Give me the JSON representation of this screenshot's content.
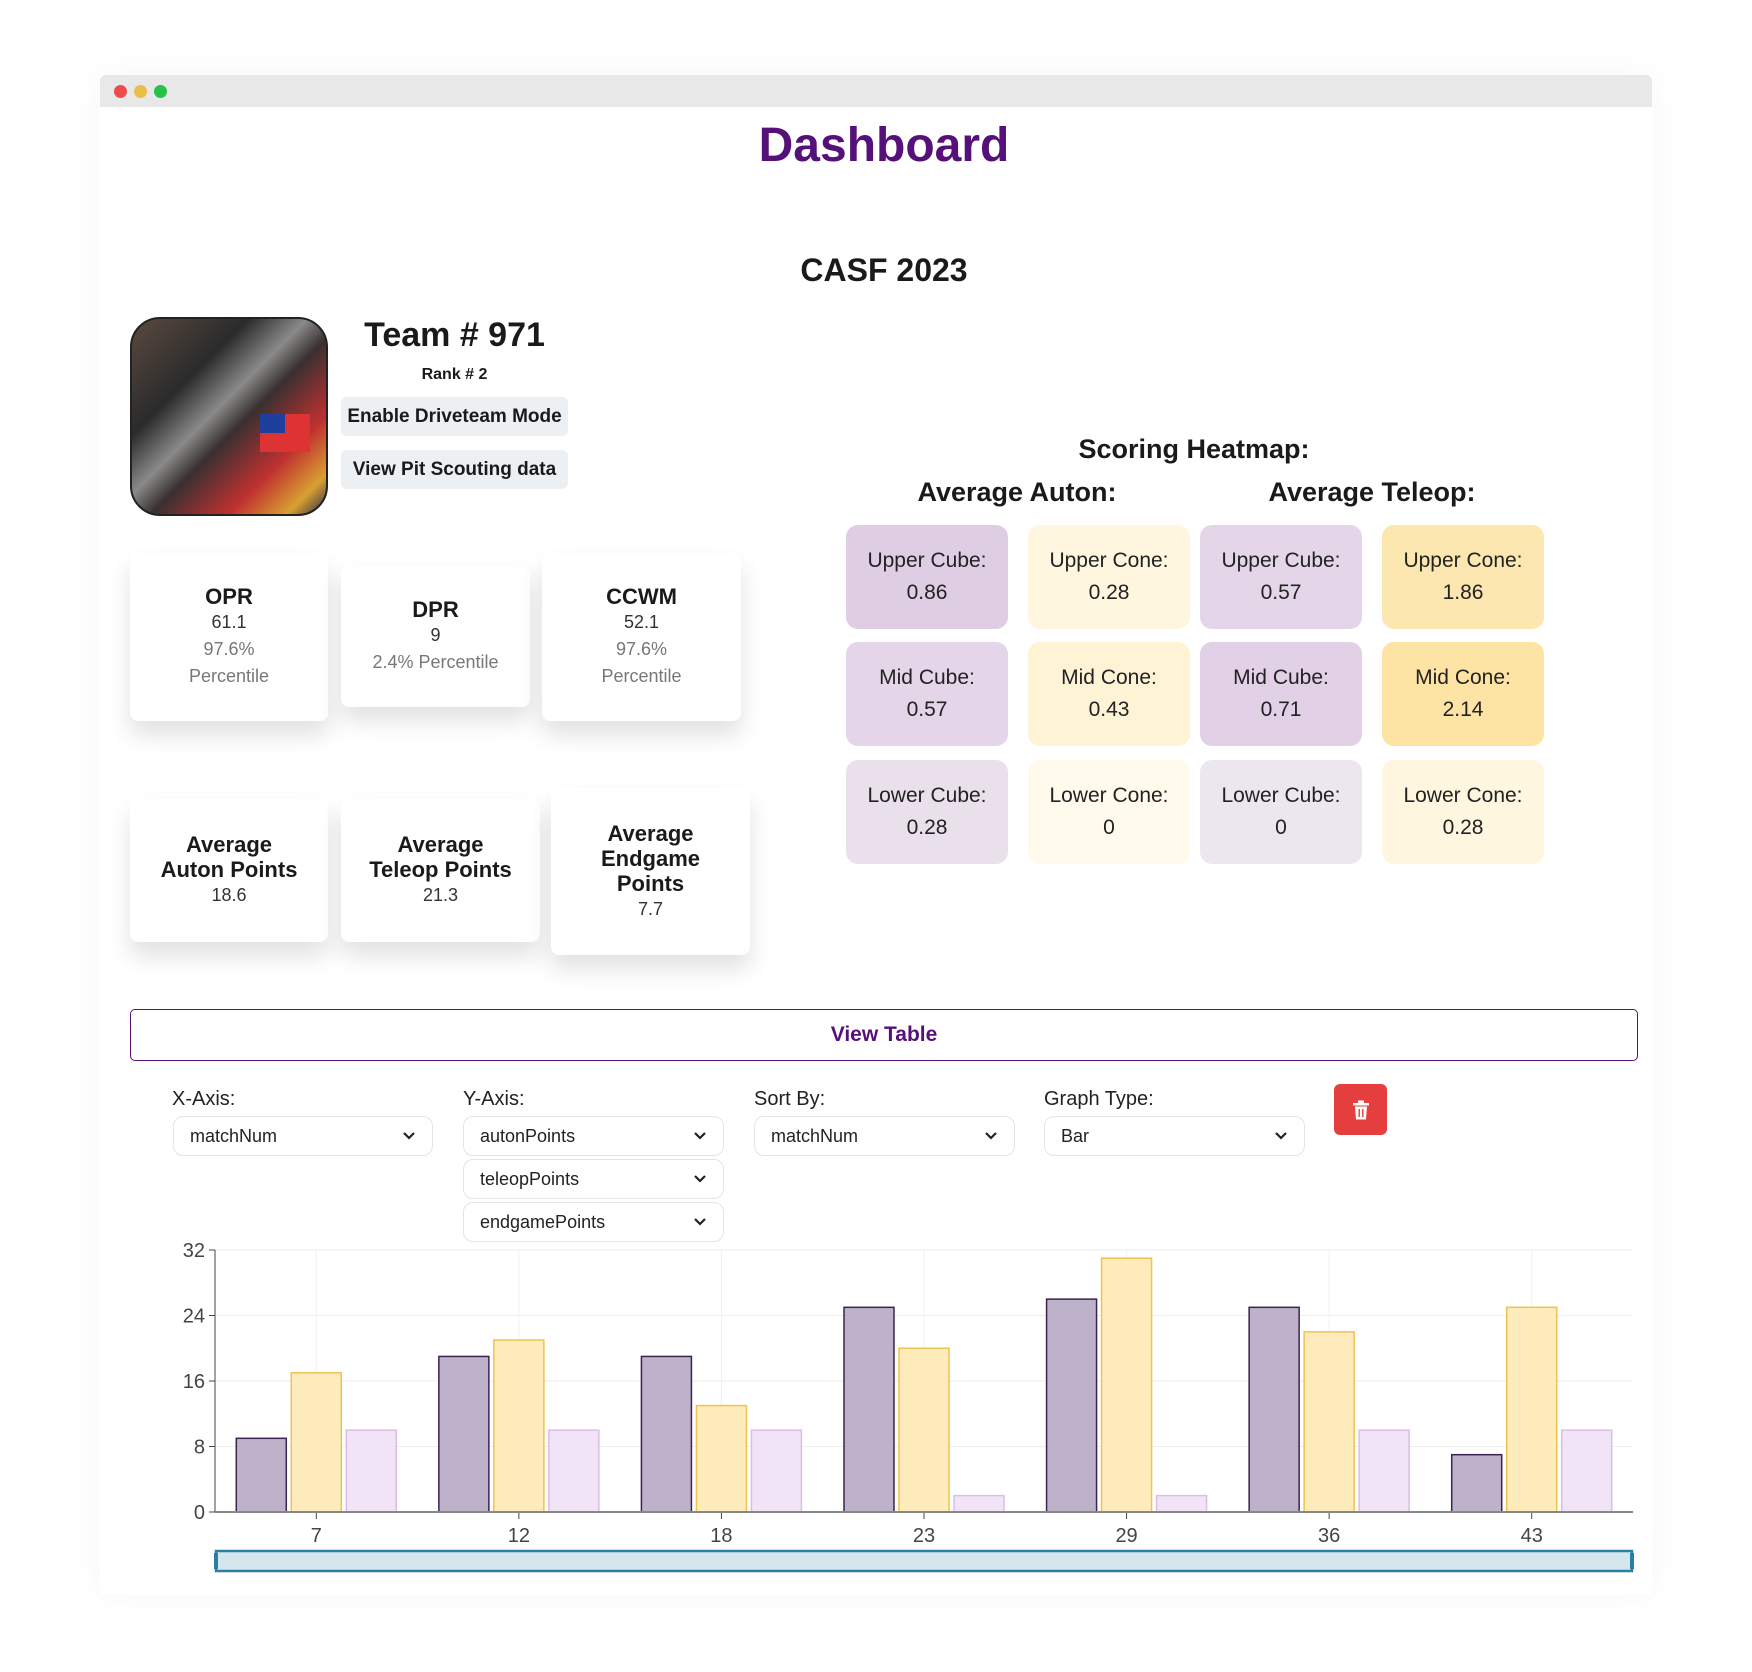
{
  "header": {
    "title": "Dashboard",
    "event": "CASF 2023"
  },
  "team": {
    "number_label": "Team # 971",
    "rank_label": "Rank # 2",
    "driveteam_button": "Enable Driveteam Mode",
    "pit_button": "View Pit Scouting data"
  },
  "stats": [
    {
      "title": "OPR",
      "value": "61.1",
      "percent": "97.6%",
      "percent_label": "Percentile"
    },
    {
      "title": "DPR",
      "value": "9",
      "percent_text": "2.4% Percentile"
    },
    {
      "title": "CCWM",
      "value": "52.1",
      "percent": "97.6%",
      "percent_label": "Percentile"
    },
    {
      "title_1": "Average",
      "title_2": "Auton Points",
      "value": "18.6"
    },
    {
      "title_1": "Average",
      "title_2": "Teleop Points",
      "value": "21.3"
    },
    {
      "title_1": "Average",
      "title_2": "Endgame",
      "title_3": "Points",
      "value": "7.7"
    }
  ],
  "heatmap": {
    "title": "Scoring Heatmap:",
    "auton_title": "Average Auton:",
    "teleop_title": "Average Teleop:",
    "cells": [
      {
        "label": "Upper Cube:",
        "value": "0.86",
        "color": "#dfcde4"
      },
      {
        "label": "Upper Cone:",
        "value": "0.28",
        "color": "#fff6df"
      },
      {
        "label": "Upper Cube:",
        "value": "0.57",
        "color": "#e4d6e8"
      },
      {
        "label": "Upper Cone:",
        "value": "1.86",
        "color": "#fde7b0"
      },
      {
        "label": "Mid Cube:",
        "value": "0.57",
        "color": "#e4d6e8"
      },
      {
        "label": "Mid Cone:",
        "value": "0.43",
        "color": "#fff3d6"
      },
      {
        "label": "Mid Cube:",
        "value": "0.71",
        "color": "#e1d0e6"
      },
      {
        "label": "Mid Cone:",
        "value": "2.14",
        "color": "#fde3a4"
      },
      {
        "label": "Lower Cube:",
        "value": "0.28",
        "color": "#e9e0ec"
      },
      {
        "label": "Lower Cone:",
        "value": "0",
        "color": "#fffaeb"
      },
      {
        "label": "Lower Cube:",
        "value": "0",
        "color": "#ece6ef"
      },
      {
        "label": "Lower Cone:",
        "value": "0.28",
        "color": "#fff6df"
      }
    ]
  },
  "view_table": "View Table",
  "controls": {
    "x_label": "X-Axis:",
    "x_value": "matchNum",
    "y_label": "Y-Axis:",
    "y_values": [
      "autonPoints",
      "teleopPoints",
      "endgamePoints"
    ],
    "sort_label": "Sort By:",
    "sort_value": "matchNum",
    "type_label": "Graph Type:",
    "type_value": "Bar"
  },
  "chart_data": {
    "type": "bar",
    "categories": [
      "7",
      "12",
      "18",
      "23",
      "29",
      "36",
      "43"
    ],
    "series": [
      {
        "name": "autonPoints",
        "values": [
          9,
          19,
          19,
          25,
          26,
          25,
          7
        ],
        "color": "#beb2cb",
        "stroke": "#3a2350"
      },
      {
        "name": "teleopPoints",
        "values": [
          17,
          21,
          13,
          20,
          31,
          22,
          25
        ],
        "color": "#feecbd",
        "stroke": "#f0c24e"
      },
      {
        "name": "endgamePoints",
        "values": [
          10,
          10,
          10,
          2,
          2,
          10,
          10
        ],
        "color": "#f1e4f6",
        "stroke": "#dcbde6"
      }
    ],
    "yticks": [
      "0",
      "8",
      "16",
      "24",
      "32"
    ],
    "ylim": [
      0,
      32
    ],
    "xlabel": "matchNum",
    "ylabel": ""
  }
}
